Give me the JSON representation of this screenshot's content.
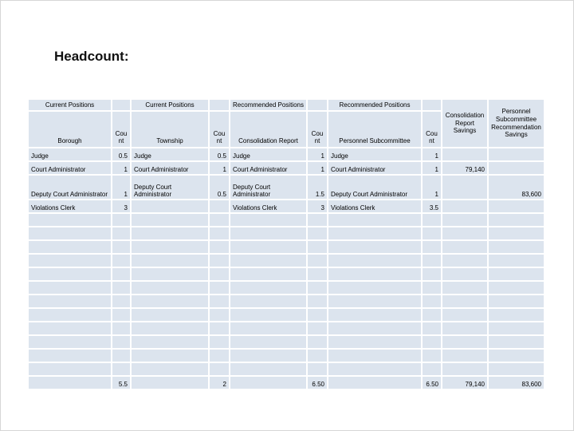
{
  "page": {
    "title": "Headcount:"
  },
  "table": {
    "colors": {
      "cell_bg": "#dce4ee",
      "grid": "#ffffff",
      "text": "#000000"
    },
    "groups": [
      {
        "label": "Current Positions"
      },
      {
        "label": "Current Positions"
      },
      {
        "label": "Recommended Positions"
      },
      {
        "label": "Recommended Positions"
      }
    ],
    "columns": [
      {
        "label": "Borough"
      },
      {
        "label": "Count"
      },
      {
        "label": "Township"
      },
      {
        "label": "Count"
      },
      {
        "label": "Consolidation Report"
      },
      {
        "label": "Count"
      },
      {
        "label": "Personnel Subcommittee"
      },
      {
        "label": "Count"
      },
      {
        "label": "Consolidation\nReport Savings"
      },
      {
        "label": "Personnel\nSubcommittee\nRecommendation\nSavings"
      }
    ],
    "rows": [
      [
        "Judge",
        "0.5",
        "Judge",
        "0.5",
        "Judge",
        "1",
        "Judge",
        "1",
        "",
        ""
      ],
      [
        "Court Administrator",
        "1",
        "Court Administrator",
        "1",
        "Court Administrator",
        "1",
        "Court Administrator",
        "1",
        "79,140",
        ""
      ],
      [
        "Deputy Court Administrator",
        "1",
        "Deputy Court Administrator",
        "0.5",
        "Deputy Court Administrator",
        "1.5",
        "Deputy Court Administrator",
        "1",
        "",
        "83,600"
      ],
      [
        "Violations Clerk",
        "3",
        "",
        "",
        "Violations Clerk",
        "3",
        "Violations Clerk",
        "3.5",
        "",
        ""
      ]
    ],
    "empty_row_count": 12,
    "totals": [
      "",
      "5.5",
      "",
      "2",
      "",
      "6.50",
      "",
      "6.50",
      "79,140",
      "83,600"
    ]
  }
}
